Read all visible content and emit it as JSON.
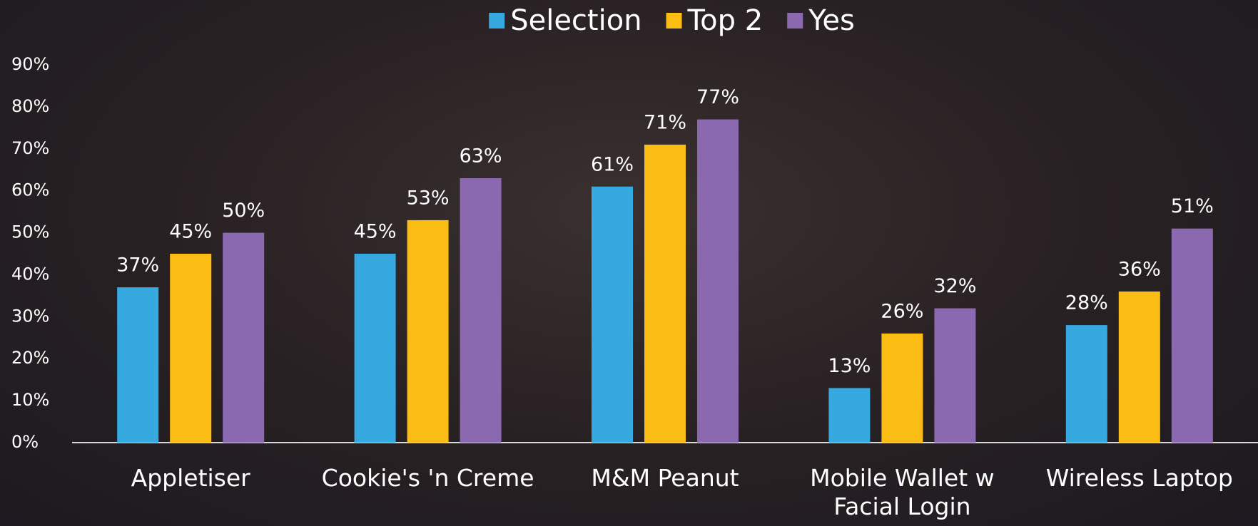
{
  "chart_data": {
    "type": "bar",
    "categories": [
      "Appletiser",
      "Cookie's 'n Creme",
      "M&M Peanut",
      "Mobile Wallet w Facial Login",
      "Wireless Laptop"
    ],
    "series": [
      {
        "name": "Selection",
        "color": "#36a9e1",
        "values": [
          37,
          45,
          61,
          13,
          28
        ],
        "value_labels": [
          "37%",
          "45%",
          "61%",
          "13%",
          "28%"
        ]
      },
      {
        "name": "Top 2",
        "color": "#fbbd13",
        "values": [
          45,
          53,
          71,
          26,
          36
        ],
        "value_labels": [
          "45%",
          "53%",
          "71%",
          "26%",
          "36%"
        ]
      },
      {
        "name": "Yes",
        "color": "#8a69b0",
        "values": [
          50,
          63,
          77,
          32,
          51
        ],
        "value_labels": [
          "50%",
          "63%",
          "77%",
          "32%",
          "51%"
        ]
      }
    ],
    "ylim": [
      0,
      90
    ],
    "yticks": [
      {
        "value": 0,
        "label": "0%"
      },
      {
        "value": 10,
        "label": "10%"
      },
      {
        "value": 20,
        "label": "20%"
      },
      {
        "value": 30,
        "label": "30%"
      },
      {
        "value": 40,
        "label": "40%"
      },
      {
        "value": 50,
        "label": "50%"
      },
      {
        "value": 60,
        "label": "60%"
      },
      {
        "value": 70,
        "label": "70%"
      },
      {
        "value": 80,
        "label": "80%"
      },
      {
        "value": 90,
        "label": "90%"
      }
    ],
    "grid": false,
    "legend": "top"
  }
}
